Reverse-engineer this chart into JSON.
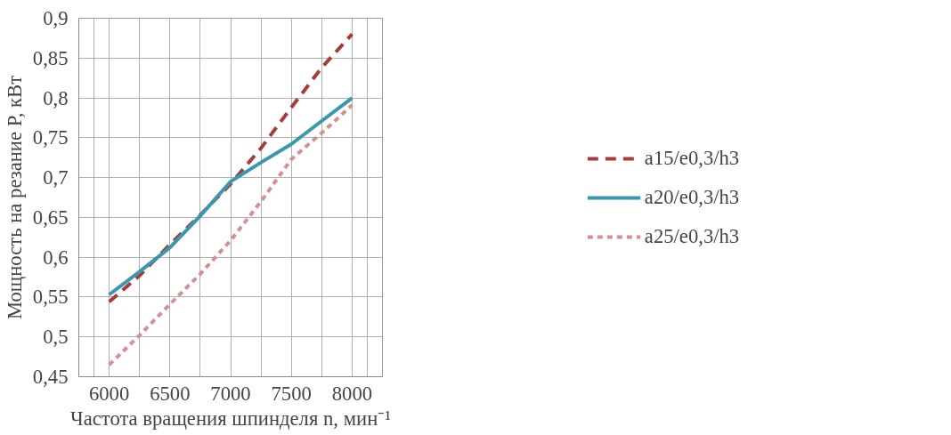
{
  "chart_data": {
    "type": "line",
    "xlabel": "Частота вращения шпинделя n, мин⁻¹",
    "ylabel": "Мощность на резание P, кВт",
    "x": [
      6000,
      6250,
      6500,
      6750,
      7000,
      7250,
      7500,
      7750,
      8000
    ],
    "series": [
      {
        "name": "a15/e0,3/h3",
        "color": "#a83c3a",
        "line_style": "dashed",
        "values": [
          0.544,
          0.577,
          0.616,
          0.653,
          0.692,
          0.737,
          0.788,
          0.838,
          0.88
        ]
      },
      {
        "name": "a20/e0,3/h3",
        "color": "#3a97b0",
        "line_style": "solid",
        "values": [
          0.553,
          0.582,
          0.612,
          0.652,
          0.695,
          0.719,
          0.742,
          0.771,
          0.8
        ]
      },
      {
        "name": "a25/e0,3/h3",
        "color": "#d48f8f",
        "line_style": "dotted",
        "values": [
          0.465,
          0.502,
          0.541,
          0.579,
          0.621,
          0.67,
          0.723,
          0.756,
          0.791
        ]
      }
    ],
    "xlim": [
      5750,
      8250
    ],
    "xticks": [
      6000,
      6500,
      7000,
      7500,
      8000
    ],
    "ylim": [
      0.45,
      0.9
    ],
    "yticks": [
      {
        "value": 0.45,
        "label": "0,45"
      },
      {
        "value": 0.5,
        "label": "0,5"
      },
      {
        "value": 0.55,
        "label": "0,55"
      },
      {
        "value": 0.6,
        "label": "0,6"
      },
      {
        "value": 0.65,
        "label": "0,65"
      },
      {
        "value": 0.7,
        "label": "0,7"
      },
      {
        "value": 0.75,
        "label": "0,75"
      },
      {
        "value": 0.8,
        "label": "0,8"
      },
      {
        "value": 0.85,
        "label": "0,85"
      },
      {
        "value": 0.9,
        "label": "0,9"
      }
    ],
    "grid": true,
    "legend": "right",
    "marker": "none"
  }
}
